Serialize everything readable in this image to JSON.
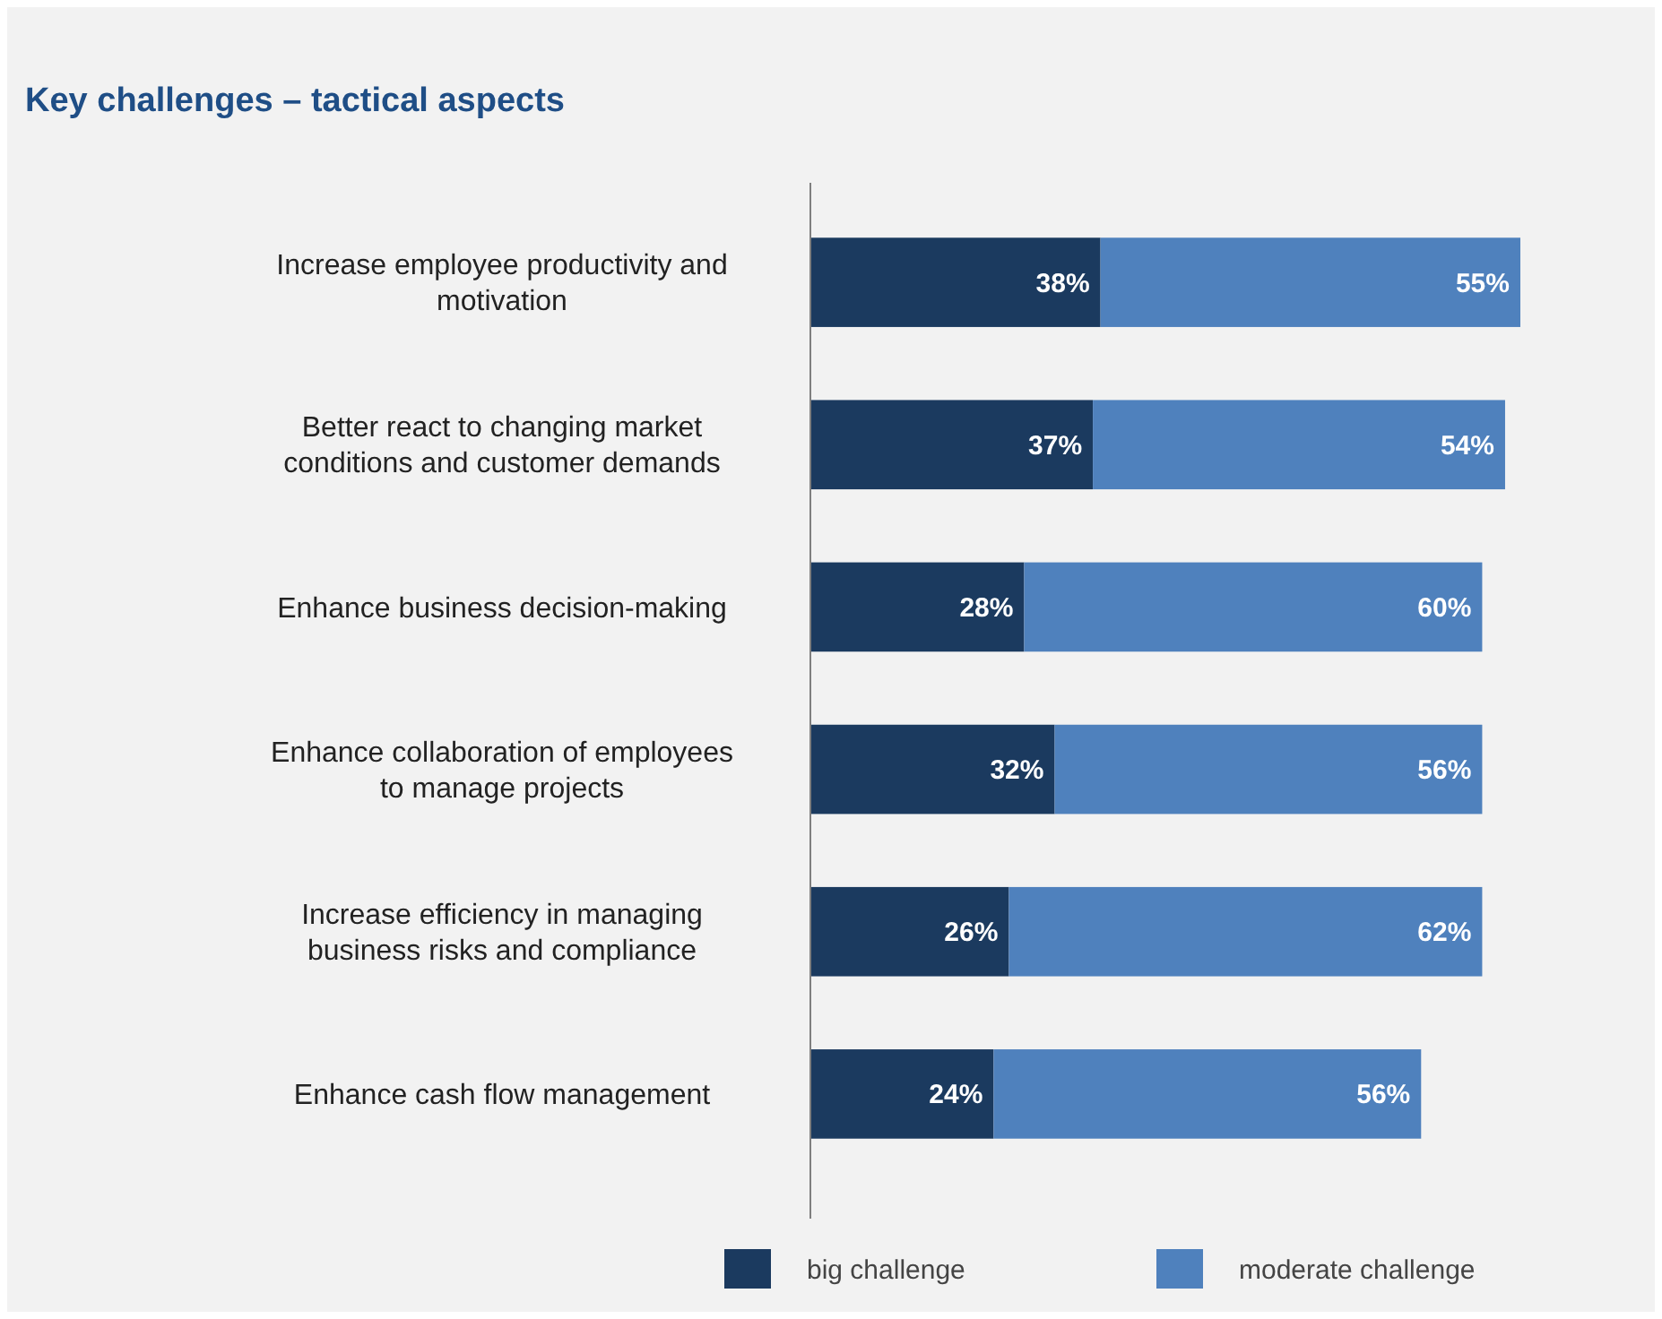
{
  "chart_data": {
    "type": "bar",
    "orientation": "horizontal",
    "stacked": true,
    "title": "Key challenges – tactical aspects",
    "categories": [
      "Increase employee productivity and motivation",
      "Better react to changing market conditions and customer demands",
      "Enhance business decision-making",
      "Enhance collaboration of employees to manage projects",
      "Increase efficiency in managing business risks and compliance",
      "Enhance cash flow management"
    ],
    "series": [
      {
        "name": "big challenge",
        "color": "#1b3a5f",
        "values": [
          38,
          37,
          28,
          32,
          26,
          24
        ],
        "value_labels": [
          "38%",
          "37%",
          "28%",
          "32%",
          "26%",
          "24%"
        ]
      },
      {
        "name": "moderate challenge",
        "color": "#4f81bd",
        "values": [
          55,
          54,
          60,
          56,
          62,
          56
        ],
        "value_labels": [
          "55%",
          "54%",
          "60%",
          "56%",
          "62%",
          "56%"
        ]
      }
    ],
    "legend": "bottom"
  }
}
